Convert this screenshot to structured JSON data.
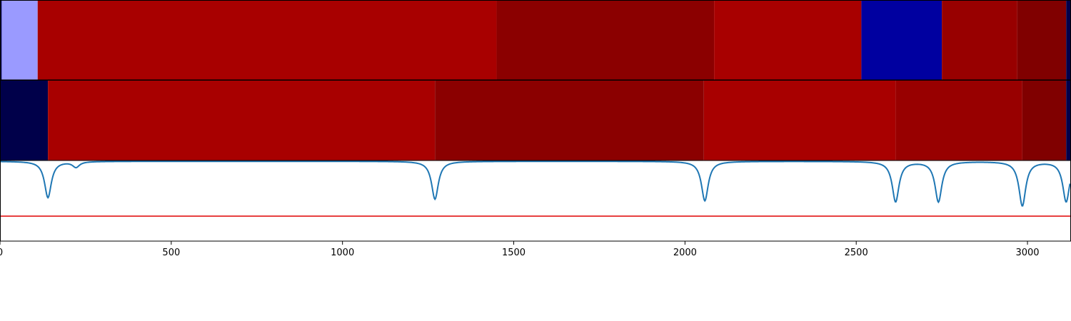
{
  "chart_data": {
    "type": "heatmap",
    "x_range": [
      0,
      3125
    ],
    "x_ticks": [
      {
        "value": 0,
        "label": "0"
      },
      {
        "value": 500,
        "label": "500"
      },
      {
        "value": 1000,
        "label": "1000"
      },
      {
        "value": 1500,
        "label": "1500"
      },
      {
        "value": 2000,
        "label": "2000"
      },
      {
        "value": 2500,
        "label": "2500"
      },
      {
        "value": 3000,
        "label": "3000"
      }
    ],
    "rows": [
      {
        "segments": [
          {
            "start": 0,
            "end": 5,
            "color": "#00004a"
          },
          {
            "start": 5,
            "end": 110,
            "color": "#9a9aff"
          },
          {
            "start": 110,
            "end": 1450,
            "color": "#a80000"
          },
          {
            "start": 1450,
            "end": 2085,
            "color": "#8b0000"
          },
          {
            "start": 2085,
            "end": 2515,
            "color": "#a80000"
          },
          {
            "start": 2515,
            "end": 2750,
            "color": "#0000a0"
          },
          {
            "start": 2750,
            "end": 2970,
            "color": "#980000"
          },
          {
            "start": 2970,
            "end": 3113,
            "color": "#800000"
          },
          {
            "start": 3113,
            "end": 3125,
            "color": "#00004a"
          }
        ]
      },
      {
        "segments": [
          {
            "start": 0,
            "end": 140,
            "color": "#00004a"
          },
          {
            "start": 140,
            "end": 1270,
            "color": "#a80000"
          },
          {
            "start": 1270,
            "end": 2055,
            "color": "#8b0000"
          },
          {
            "start": 2055,
            "end": 2615,
            "color": "#a80000"
          },
          {
            "start": 2615,
            "end": 2985,
            "color": "#980000"
          },
          {
            "start": 2985,
            "end": 3113,
            "color": "#800000"
          },
          {
            "start": 3113,
            "end": 3125,
            "color": "#00004a"
          }
        ]
      }
    ],
    "line_panel": {
      "y_range": [
        0,
        1
      ],
      "baseline": 0.99,
      "dips": [
        {
          "x": 140,
          "depth": 0.45
        },
        {
          "x": 222,
          "depth": 0.07
        },
        {
          "x": 1270,
          "depth": 0.47
        },
        {
          "x": 2058,
          "depth": 0.49
        },
        {
          "x": 2615,
          "depth": 0.5
        },
        {
          "x": 2740,
          "depth": 0.5
        },
        {
          "x": 2985,
          "depth": 0.55
        },
        {
          "x": 3113,
          "depth": 0.5
        }
      ],
      "threshold": 0.31,
      "line_color": "#1f77b4",
      "threshold_color": "#e00000"
    }
  }
}
